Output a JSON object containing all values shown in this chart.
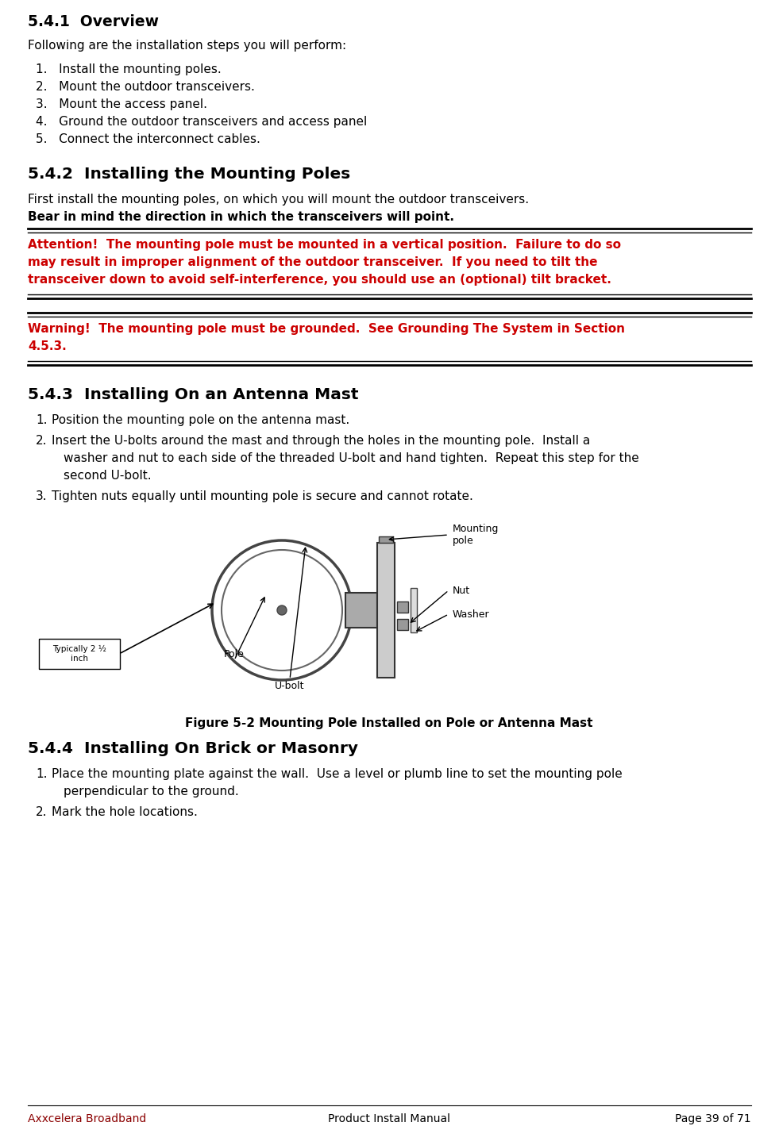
{
  "bg_color": "#ffffff",
  "text_color": "#000000",
  "red_color": "#cc0000",
  "footer_color": "#8b0000",
  "title_541": "5.4.1  Overview",
  "para_541": "Following are the installation steps you will perform:",
  "list_541": [
    "1.   Install the mounting poles.",
    "2.   Mount the outdoor transceivers.",
    "3.   Mount the access panel.",
    "4.   Ground the outdoor transceivers and access panel",
    "5.   Connect the interconnect cables."
  ],
  "title_542": "5.4.2  Installing the Mounting Poles",
  "para_542a": "First install the mounting poles, on which you will mount the outdoor transceivers.",
  "para_542b": "Bear in mind the direction in which the transceivers will point.",
  "attention_line1": "Attention!  The mounting pole must be mounted in a vertical position.  Failure to do so",
  "attention_line2": "may result in improper alignment of the outdoor transceiver.  If you need to tilt the",
  "attention_line3": "transceiver down to avoid self-interference, you should use an (optional) tilt bracket.",
  "warning_line1": "Warning!  The mounting pole must be grounded.  See Grounding The System in Section",
  "warning_line2": "4.5.3.",
  "title_543": "5.4.3  Installing On an Antenna Mast",
  "fig_caption": "Figure 5-2 Mounting Pole Installed on Pole or Antenna Mast",
  "title_544": "5.4.4  Installing On Brick or Masonry",
  "footer_left": "Axxcelera Broadband",
  "footer_center": "Product Install Manual",
  "footer_right": "Page 39 of 71"
}
